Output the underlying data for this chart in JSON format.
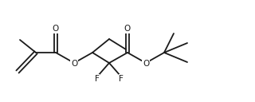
{
  "bg_color": "#ffffff",
  "line_color": "#1a1a1a",
  "line_width": 1.3,
  "font_size": 7.5,
  "fig_w": 3.2,
  "fig_h": 1.28,
  "dpi": 100,
  "xlim": [
    0,
    32
  ],
  "ylim": [
    0,
    12.8
  ]
}
